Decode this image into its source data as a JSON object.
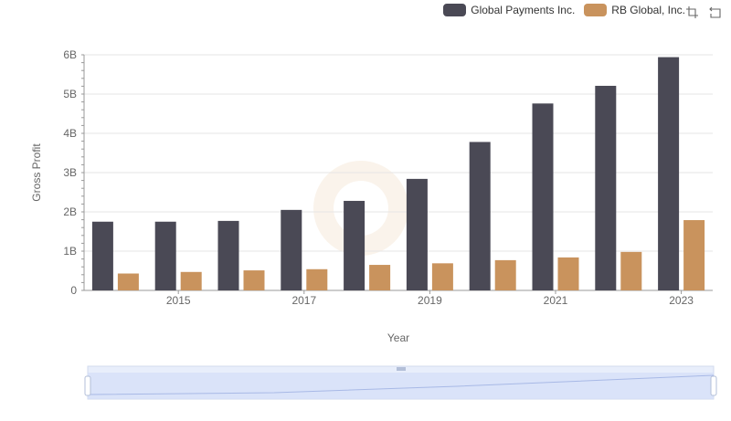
{
  "legend": {
    "items": [
      {
        "label": "Global Payments Inc.",
        "color": "#4a4955"
      },
      {
        "label": "RB Global, Inc.",
        "color": "#c9935d"
      }
    ]
  },
  "toolbox": {
    "zoom_icon": "zoom-icon",
    "reset_icon": "restore-icon"
  },
  "chart_data": {
    "type": "bar",
    "title": "",
    "xlabel": "Year",
    "ylabel": "Gross Profit",
    "categories": [
      "2014",
      "2015",
      "2016",
      "2017",
      "2018",
      "2019",
      "2020",
      "2021",
      "2022",
      "2023"
    ],
    "x_tick_labels": [
      "2015",
      "2017",
      "2019",
      "2021",
      "2023"
    ],
    "y_tick_labels": [
      "0",
      "1B",
      "2B",
      "3B",
      "4B",
      "5B",
      "6B"
    ],
    "ylim": [
      0,
      6000000000
    ],
    "grid": true,
    "legend_position": "top-right",
    "series": [
      {
        "name": "Global Payments Inc.",
        "color": "#4a4955",
        "values": [
          1750000000,
          1750000000,
          1770000000,
          2050000000,
          2280000000,
          2840000000,
          3780000000,
          4760000000,
          5210000000,
          5940000000
        ]
      },
      {
        "name": "RB Global, Inc.",
        "color": "#c9935d",
        "values": [
          430000000,
          470000000,
          510000000,
          540000000,
          650000000,
          690000000,
          770000000,
          840000000,
          980000000,
          1790000000
        ]
      }
    ]
  }
}
